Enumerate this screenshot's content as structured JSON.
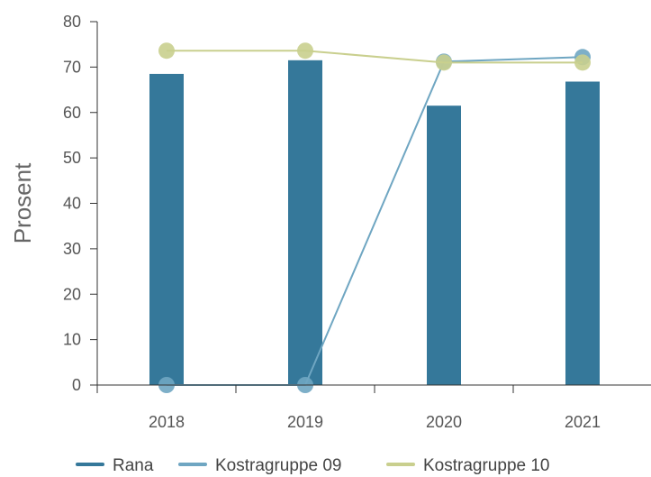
{
  "chart_data": {
    "type": "bar",
    "categories": [
      "2018",
      "2019",
      "2020",
      "2021"
    ],
    "ylabel": "Prosent",
    "xlabel": "",
    "ylim": [
      0,
      80
    ],
    "yticks": [
      0,
      10,
      20,
      30,
      40,
      50,
      60,
      70,
      80
    ],
    "grid": false,
    "legend_position": "bottom",
    "series": [
      {
        "name": "Rana",
        "type": "bar",
        "color": "#35789a",
        "values": [
          68.5,
          71.5,
          61.5,
          66.8
        ]
      },
      {
        "name": "Kostragruppe 09",
        "type": "line",
        "color": "#6fa6c2",
        "values": [
          0,
          0,
          71.2,
          72.2
        ]
      },
      {
        "name": "Kostragruppe 10",
        "type": "line",
        "color": "#c9cf8e",
        "values": [
          73.6,
          73.6,
          71.0,
          71.0
        ]
      }
    ]
  }
}
